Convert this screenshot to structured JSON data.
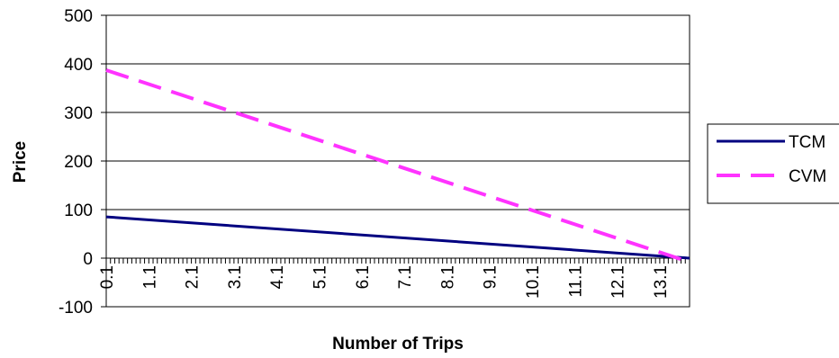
{
  "chart_data": {
    "type": "line",
    "title": "",
    "xlabel": "Number of Trips",
    "ylabel": "Price",
    "ylim": [
      -100,
      500
    ],
    "yticks": [
      "500",
      "400",
      "300",
      "200",
      "100",
      "0",
      "-100"
    ],
    "xlim": [
      0.1,
      13.8
    ],
    "x_tick_labels": [
      "0.1",
      "1.1",
      "2.1",
      "3.1",
      "4.1",
      "5.1",
      "6.1",
      "7.1",
      "8.1",
      "9.1",
      "10.1",
      "11.1",
      "12.1",
      "13.1"
    ],
    "grid": "horizontal",
    "legend_position": "right",
    "series": [
      {
        "name": "TCM",
        "color": "#000080",
        "style": "solid",
        "x": [
          0.1,
          13.8
        ],
        "values": [
          85,
          0
        ]
      },
      {
        "name": "CVM",
        "color": "#FF33FF",
        "style": "dashed",
        "x": [
          0.1,
          13.8
        ],
        "values": [
          387,
          -8
        ]
      }
    ]
  }
}
